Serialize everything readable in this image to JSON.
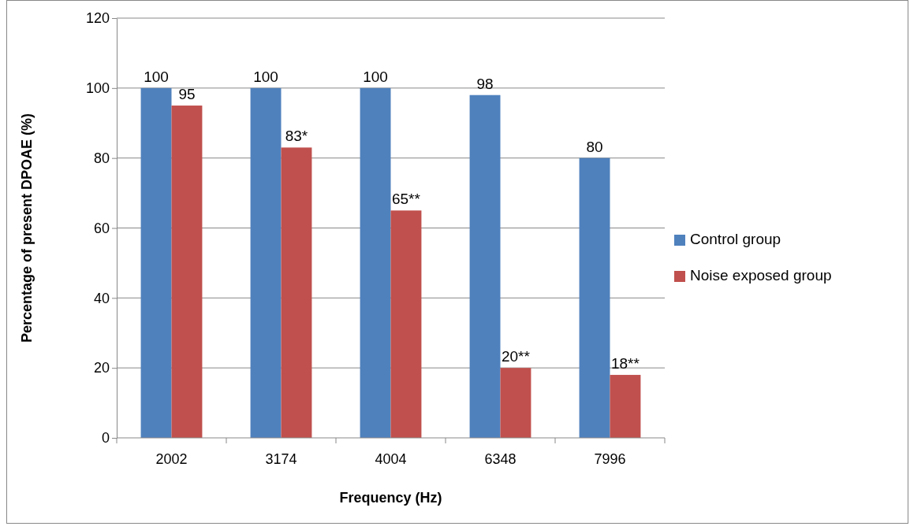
{
  "chart_data": {
    "type": "bar",
    "xlabel": "Frequency (Hz)",
    "ylabel": "Percentage of present  DPOAE (%)",
    "categories": [
      "2002",
      "3174",
      "4004",
      "6348",
      "7996"
    ],
    "series": [
      {
        "name": "Control group",
        "color": "#4f81bd",
        "values": [
          100,
          100,
          100,
          98,
          80
        ],
        "value_labels": [
          "100",
          "100",
          "100",
          "98",
          "80"
        ]
      },
      {
        "name": "Noise exposed group",
        "color": "#c0504d",
        "values": [
          95,
          83,
          65,
          20,
          18
        ],
        "value_labels": [
          "95",
          "83*",
          "65**",
          "20**",
          "18**"
        ]
      }
    ],
    "ylim": [
      0,
      120
    ],
    "yticks": [
      0,
      20,
      40,
      60,
      80,
      100,
      120
    ],
    "grid": "y",
    "legend": "right"
  }
}
